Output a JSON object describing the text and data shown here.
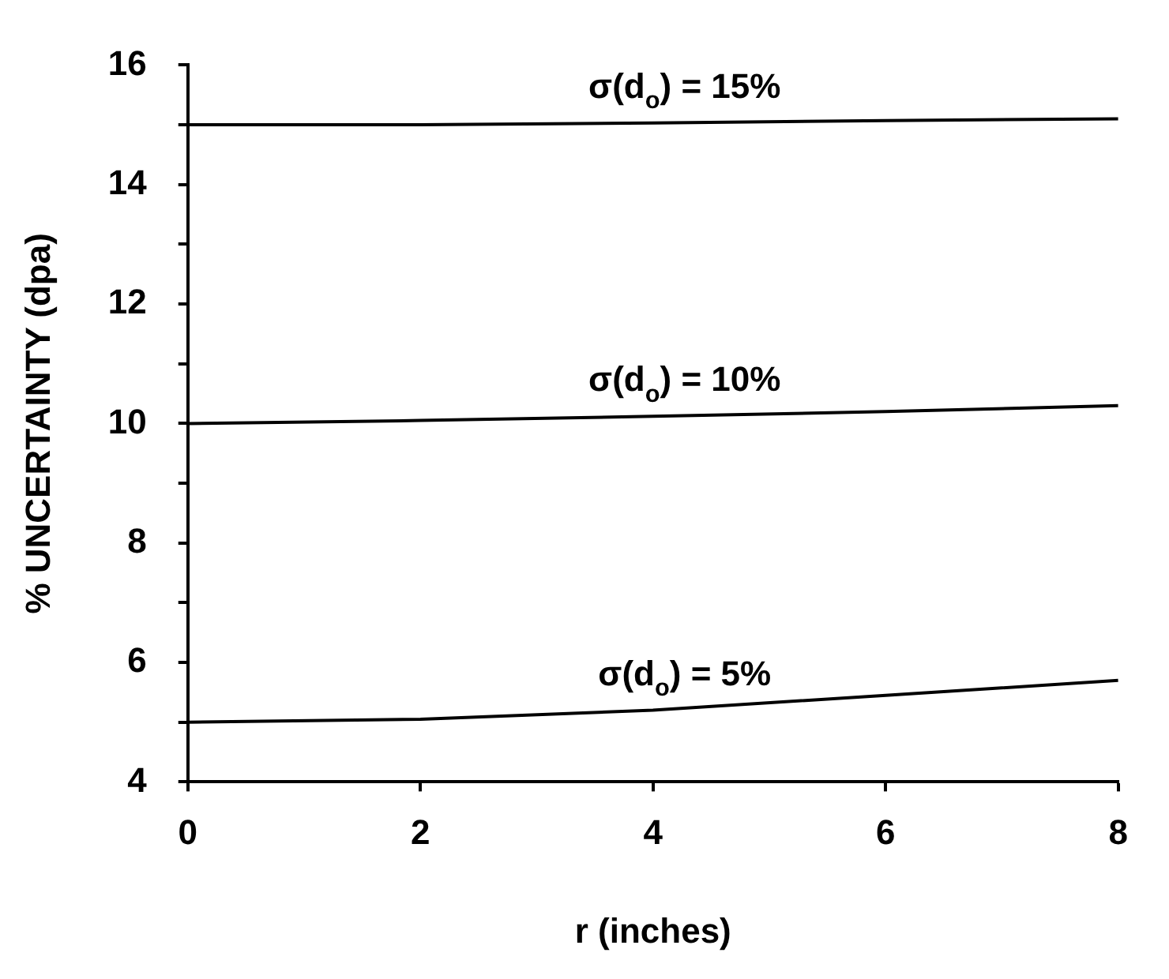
{
  "chart_data": {
    "type": "line",
    "xlabel": "r (inches)",
    "ylabel": "% UNCERTAINTY (dpa)",
    "x": [
      0,
      2,
      4,
      6,
      8
    ],
    "series": [
      {
        "name": "σ(d$_{o}$) = 15%",
        "color": "#000000",
        "values": [
          15.0,
          15.0,
          15.03,
          15.07,
          15.1
        ]
      },
      {
        "name": "σ(d$_{o}$) = 10%",
        "color": "#000000",
        "values": [
          10.0,
          10.05,
          10.12,
          10.2,
          10.3
        ]
      },
      {
        "name": "σ(d$_{o}$) = 5%",
        "color": "#000000",
        "values": [
          5.0,
          5.05,
          5.2,
          5.45,
          5.7
        ]
      }
    ],
    "xlim": [
      0,
      8
    ],
    "xticks": [
      0,
      2,
      4,
      6,
      8
    ],
    "ylim": [
      4,
      16
    ],
    "yticks": [
      4,
      {
        "value": 5,
        "label": null
      },
      6,
      {
        "value": 7,
        "label": null
      },
      8,
      {
        "value": 9,
        "label": null
      },
      10,
      {
        "value": 11,
        "label": null
      },
      12,
      {
        "value": 13,
        "label": null
      },
      14,
      {
        "value": 15,
        "label": null
      },
      16
    ],
    "grid": false,
    "legend": false,
    "marker": "none",
    "line_style": "solid"
  }
}
